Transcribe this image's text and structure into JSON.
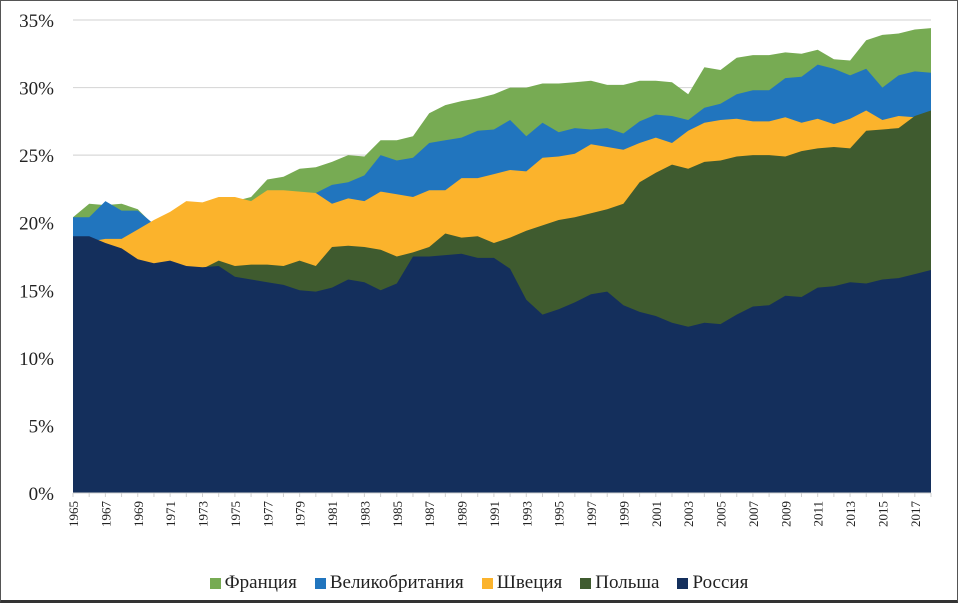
{
  "chart_data": {
    "type": "area",
    "title": "",
    "xlabel": "",
    "ylabel": "",
    "ylim": [
      0,
      35
    ],
    "ytick_step": 5,
    "ytick_format": "percent",
    "grid": true,
    "legend_position": "bottom",
    "x": [
      1965,
      1966,
      1967,
      1968,
      1969,
      1970,
      1971,
      1972,
      1973,
      1974,
      1975,
      1976,
      1977,
      1978,
      1979,
      1980,
      1981,
      1982,
      1983,
      1984,
      1985,
      1986,
      1987,
      1988,
      1989,
      1990,
      1991,
      1992,
      1993,
      1994,
      1995,
      1996,
      1997,
      1998,
      1999,
      2000,
      2001,
      2002,
      2003,
      2004,
      2005,
      2006,
      2007,
      2008,
      2009,
      2010,
      2011,
      2012,
      2013,
      2014,
      2015,
      2016,
      2017,
      2018
    ],
    "xtick_labels": [
      "1965",
      "1967",
      "1969",
      "1971",
      "1973",
      "1975",
      "1977",
      "1979",
      "1981",
      "1983",
      "1985",
      "1987",
      "1989",
      "1991",
      "1993",
      "1995",
      "1997",
      "1999",
      "2001",
      "2003",
      "2005",
      "2007",
      "2009",
      "2011",
      "2013",
      "2015",
      "2017"
    ],
    "series": [
      {
        "name": "Франция",
        "color": "#77ab53",
        "values": [
          20.4,
          21.4,
          21.3,
          21.4,
          21.0,
          19.8,
          20.5,
          21.2,
          21.3,
          21.5,
          21.6,
          21.9,
          23.2,
          23.4,
          24.0,
          24.1,
          24.5,
          25.0,
          24.9,
          26.1,
          26.1,
          26.4,
          28.1,
          28.7,
          29.0,
          29.2,
          29.5,
          30.0,
          30.0,
          30.3,
          30.3,
          30.4,
          30.5,
          30.2,
          30.2,
          30.5,
          30.5,
          30.4,
          29.5,
          31.5,
          31.3,
          32.2,
          32.4,
          32.4,
          32.6,
          32.5,
          32.8,
          32.1,
          32.0,
          33.5,
          33.9,
          34.0,
          34.3,
          34.4
        ]
      },
      {
        "name": "Великобритания",
        "color": "#2175be",
        "values": [
          20.4,
          20.4,
          21.6,
          20.9,
          20.9,
          19.9,
          20.0,
          20.5,
          20.8,
          21.0,
          21.0,
          21.2,
          21.6,
          21.8,
          22.0,
          22.2,
          22.8,
          23.0,
          23.5,
          25.0,
          24.6,
          24.8,
          25.9,
          26.1,
          26.3,
          26.8,
          26.9,
          27.6,
          26.4,
          27.4,
          26.7,
          27.0,
          26.9,
          27.0,
          26.6,
          27.5,
          28.0,
          27.9,
          27.6,
          28.5,
          28.8,
          29.5,
          29.8,
          29.8,
          30.7,
          30.8,
          31.7,
          31.4,
          30.9,
          31.4,
          30.0,
          30.9,
          31.2,
          31.1
        ]
      },
      {
        "name": "Швеция",
        "color": "#fbb32c",
        "values": [
          18.5,
          18.6,
          18.8,
          18.8,
          19.5,
          20.2,
          20.8,
          21.6,
          21.5,
          21.9,
          21.9,
          21.6,
          22.4,
          22.4,
          22.3,
          22.2,
          21.4,
          21.8,
          21.6,
          22.3,
          22.1,
          21.9,
          22.4,
          22.4,
          23.3,
          23.3,
          23.6,
          23.9,
          23.8,
          24.8,
          24.9,
          25.1,
          25.8,
          25.6,
          25.4,
          25.9,
          26.3,
          25.9,
          26.8,
          27.4,
          27.6,
          27.7,
          27.5,
          27.5,
          27.8,
          27.4,
          27.7,
          27.3,
          27.7,
          28.3,
          27.6,
          27.9,
          27.8,
          28.0
        ]
      },
      {
        "name": "Польша",
        "color": "#3f5b2f",
        "values": [
          16.0,
          16.0,
          16.2,
          16.3,
          16.4,
          16.5,
          16.6,
          16.6,
          16.6,
          17.2,
          16.8,
          16.9,
          16.9,
          16.8,
          17.2,
          16.8,
          18.2,
          18.3,
          18.2,
          18.0,
          17.5,
          17.8,
          18.2,
          19.2,
          18.9,
          19.0,
          18.5,
          18.9,
          19.4,
          19.8,
          20.2,
          20.4,
          20.7,
          21.0,
          21.4,
          23.0,
          23.7,
          24.3,
          24.0,
          24.5,
          24.6,
          24.9,
          25.0,
          25.0,
          24.9,
          25.3,
          25.5,
          25.6,
          25.5,
          26.8,
          26.9,
          27.0,
          27.9,
          28.3
        ]
      },
      {
        "name": "Россия",
        "color": "#142f5c",
        "values": [
          19.0,
          19.0,
          18.5,
          18.1,
          17.3,
          17.0,
          17.2,
          16.8,
          16.7,
          16.8,
          16.0,
          15.8,
          15.6,
          15.4,
          15.0,
          14.9,
          15.2,
          15.8,
          15.6,
          15.0,
          15.5,
          17.5,
          17.5,
          17.6,
          17.7,
          17.4,
          17.4,
          16.6,
          14.3,
          13.2,
          13.6,
          14.1,
          14.7,
          14.9,
          13.9,
          13.4,
          13.1,
          12.6,
          12.3,
          12.6,
          12.5,
          13.2,
          13.8,
          13.9,
          14.6,
          14.5,
          15.2,
          15.3,
          15.6,
          15.5,
          15.8,
          15.9,
          16.2,
          16.5
        ]
      }
    ]
  }
}
